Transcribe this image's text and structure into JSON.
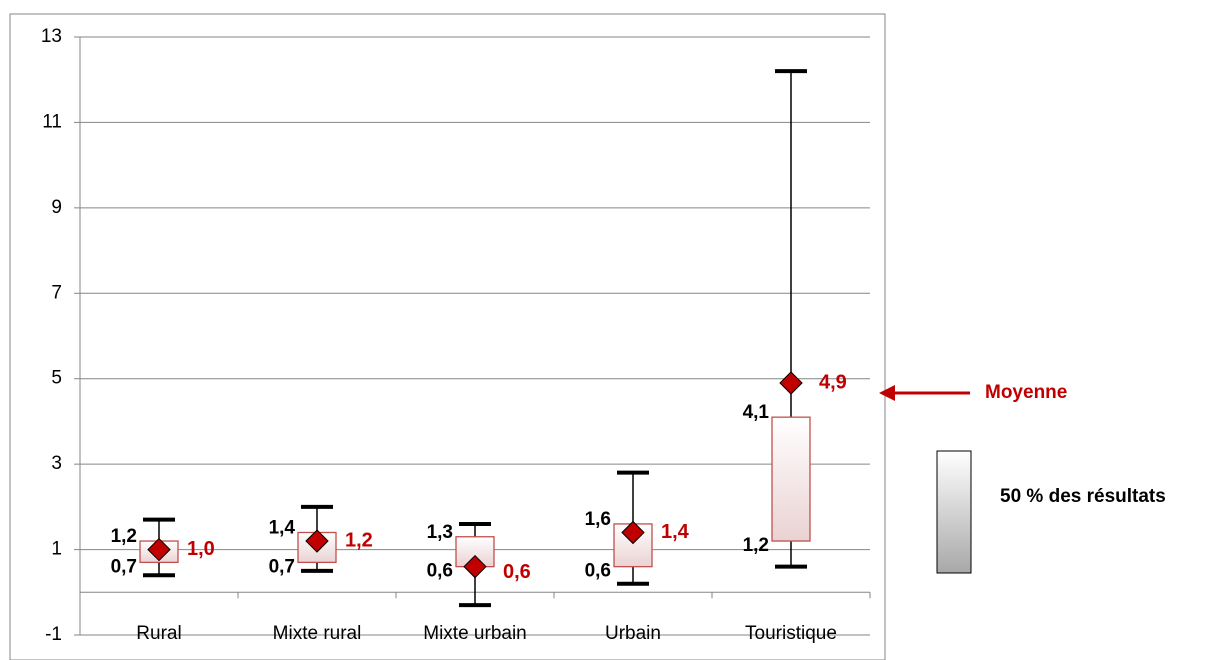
{
  "chart_data": {
    "type": "boxplot",
    "categories": [
      "Rural",
      "Mixte rural",
      "Mixte urbain",
      "Urbain",
      "Touristique"
    ],
    "ylim": [
      -1,
      13
    ],
    "yticks": [
      "-1",
      "1",
      "3",
      "5",
      "7",
      "9",
      "11",
      "13"
    ],
    "series": [
      {
        "category": "Rural",
        "min": 0.4,
        "q1": 0.7,
        "q3": 1.2,
        "max": 1.7,
        "mean": 1.0,
        "q1_label": "0,7",
        "q3_label": "1,2",
        "mean_label": "1,0"
      },
      {
        "category": "Mixte rural",
        "min": 0.5,
        "q1": 0.7,
        "q3": 1.4,
        "max": 2.0,
        "mean": 1.2,
        "q1_label": "0,7",
        "q3_label": "1,4",
        "mean_label": "1,2"
      },
      {
        "category": "Mixte urbain",
        "min": -0.3,
        "q1": 0.6,
        "q3": 1.3,
        "max": 1.6,
        "mean": 0.6,
        "q1_label": "0,6",
        "q3_label": "1,3",
        "mean_label": "0,6"
      },
      {
        "category": "Urbain",
        "min": 0.2,
        "q1": 0.6,
        "q3": 1.6,
        "max": 2.8,
        "mean": 1.4,
        "q1_label": "0,6",
        "q3_label": "1,6",
        "mean_label": "1,4"
      },
      {
        "category": "Touristique",
        "min": 0.6,
        "q1": 1.2,
        "q3": 4.1,
        "max": 12.2,
        "mean": 4.9,
        "q1_label": "1,2",
        "q3_label": "4,1",
        "mean_label": "4,9"
      }
    ],
    "grid": true,
    "colors": {
      "mean_marker": "#C00000",
      "box_border": "#C0504D",
      "whisker": "#000000",
      "grid": "#868686"
    }
  },
  "legend": {
    "mean_label": "Moyenne",
    "box_label": "50 % des résultats",
    "mean_color": "#C00000"
  }
}
